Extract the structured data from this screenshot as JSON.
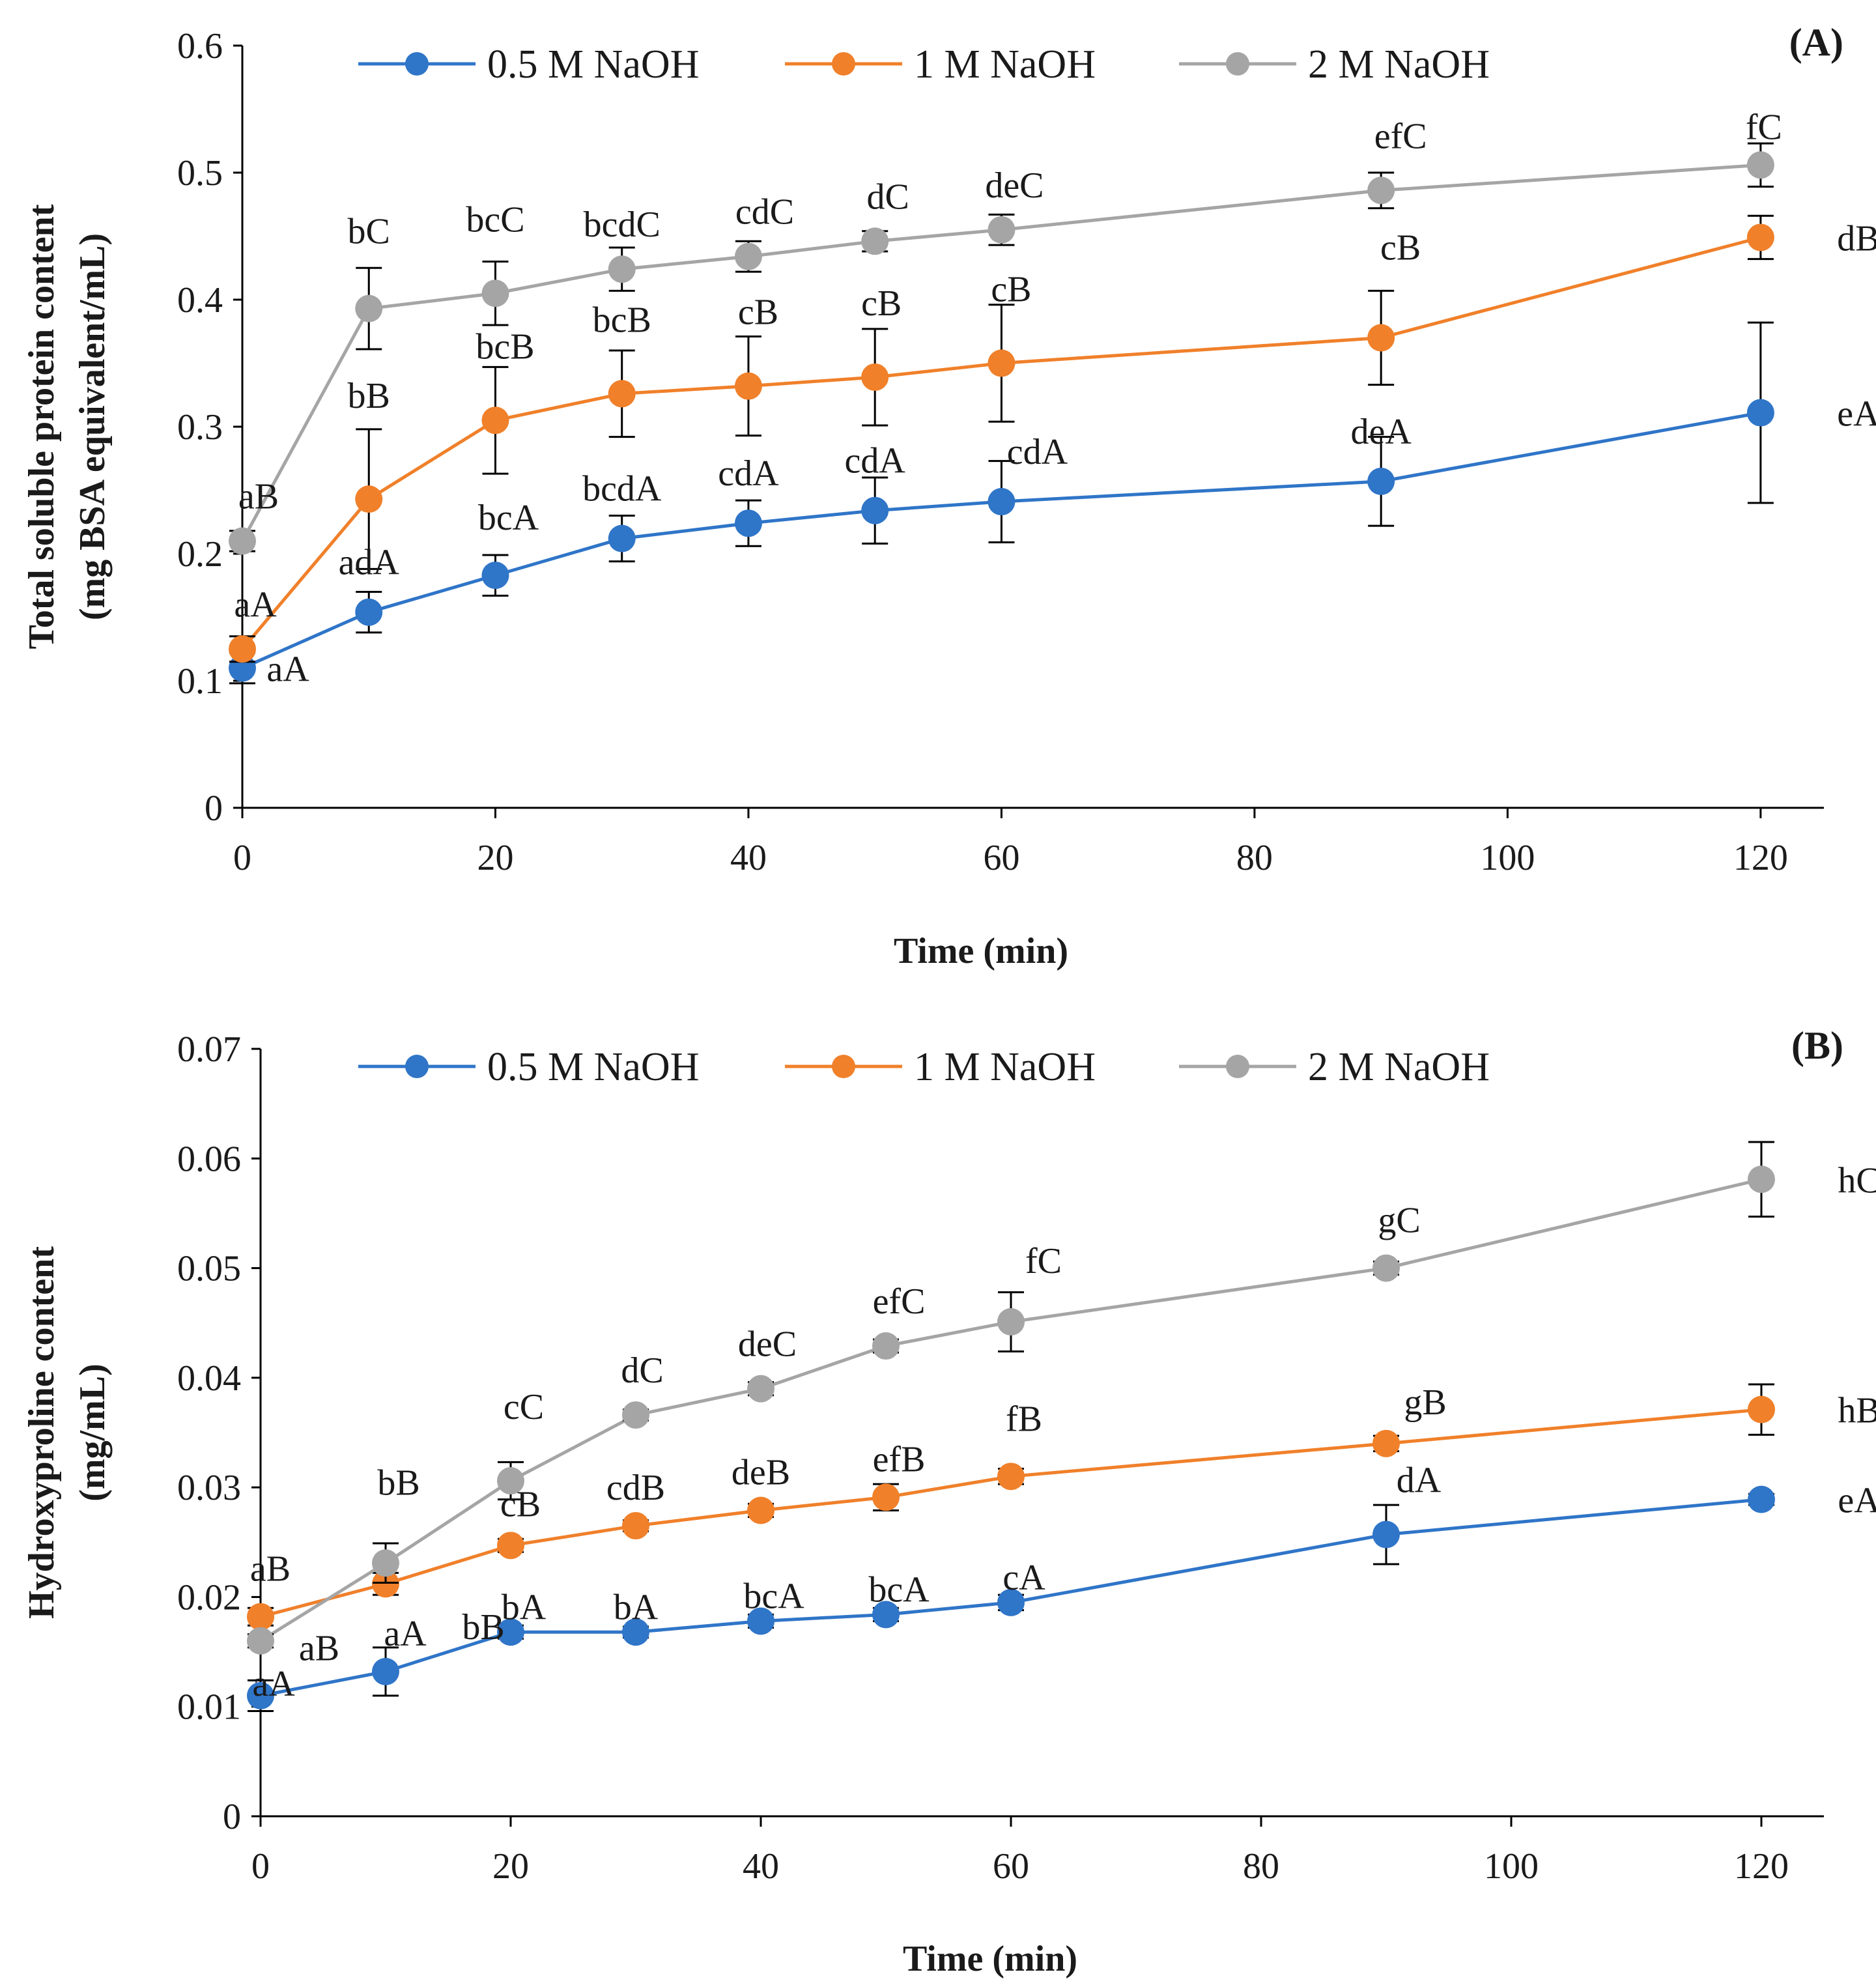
{
  "chart_data": [
    {
      "type": "line",
      "panel_label": "(A)",
      "xlabel": "Time (min)",
      "ylabel_lines": [
        "Total soluble protein content",
        "(mg BSA equivalent/mL)"
      ],
      "xlim": [
        0,
        125
      ],
      "ylim": [
        0,
        0.6
      ],
      "xticks": [
        0,
        20,
        40,
        60,
        80,
        100,
        120
      ],
      "yticks": [
        0,
        0.1,
        0.2,
        0.3,
        0.4,
        0.5,
        0.6
      ],
      "ytick_labels": [
        "0",
        "0.1",
        "0.2",
        "0.3",
        "0.4",
        "0.5",
        "0.6"
      ],
      "legend_position": "top",
      "grid": false,
      "x": [
        0,
        10,
        20,
        30,
        40,
        50,
        60,
        90,
        120
      ],
      "series": [
        {
          "name": "0.5 M NaOH",
          "color": "#2f75c8",
          "values": [
            0.11,
            0.154,
            0.183,
            0.212,
            0.224,
            0.234,
            0.241,
            0.257,
            0.311
          ],
          "errors": [
            0.012,
            0.016,
            0.016,
            0.018,
            0.018,
            0.026,
            0.032,
            0.035,
            0.071
          ],
          "labels": [
            "aA",
            "adA",
            "bcA",
            "bcdA",
            "cdA",
            "cdA",
            "cdA",
            "deA",
            "eA"
          ]
        },
        {
          "name": "1 M NaOH",
          "color": "#f0802a",
          "values": [
            0.125,
            0.243,
            0.305,
            0.326,
            0.332,
            0.339,
            0.35,
            0.37,
            0.449
          ],
          "errors": [
            0.01,
            0.055,
            0.042,
            0.034,
            0.039,
            0.038,
            0.046,
            0.037,
            0.017
          ],
          "labels": [
            "aA",
            "bB",
            "bcB",
            "bcB",
            "cB",
            "cB",
            "cB",
            "cB",
            "dB"
          ]
        },
        {
          "name": "2 M NaOH",
          "color": "#a5a5a5",
          "values": [
            0.21,
            0.393,
            0.405,
            0.424,
            0.434,
            0.446,
            0.455,
            0.486,
            0.506
          ],
          "errors": [
            0.008,
            0.032,
            0.025,
            0.017,
            0.012,
            0.008,
            0.012,
            0.014,
            0.017
          ],
          "labels": [
            "aB",
            "bC",
            "bcC",
            "bcdC",
            "cdC",
            "dC",
            "deC",
            "efC",
            "fC"
          ]
        }
      ]
    },
    {
      "type": "line",
      "panel_label": "(B)",
      "xlabel": "Time (min)",
      "ylabel_lines": [
        "Hydroxyproline content",
        "(mg/mL)"
      ],
      "xlim": [
        0,
        125
      ],
      "ylim": [
        0,
        0.07
      ],
      "xticks": [
        0,
        20,
        40,
        60,
        80,
        100,
        120
      ],
      "yticks": [
        0,
        0.01,
        0.02,
        0.03,
        0.04,
        0.05,
        0.06,
        0.07
      ],
      "ytick_labels": [
        "0",
        "0.01",
        "0.02",
        "0.03",
        "0.04",
        "0.05",
        "0.06",
        "0.07"
      ],
      "legend_position": "top",
      "grid": false,
      "x": [
        0,
        10,
        20,
        30,
        40,
        50,
        60,
        90,
        120
      ],
      "series": [
        {
          "name": "0.5 M NaOH",
          "color": "#2f75c8",
          "values": [
            0.011,
            0.0132,
            0.0168,
            0.0168,
            0.0178,
            0.0184,
            0.0195,
            0.0257,
            0.0289
          ],
          "errors": [
            0.0014,
            0.0022,
            0.0006,
            0.0005,
            0.0006,
            0.0006,
            0.0007,
            0.0027,
            0.0005
          ],
          "labels": [
            "aA",
            "aA",
            "bA",
            "bA",
            "bcA",
            "bcA",
            "cA",
            "dA",
            "eA"
          ]
        },
        {
          "name": "1 M NaOH",
          "color": "#f0802a",
          "values": [
            0.0182,
            0.0212,
            0.0247,
            0.0265,
            0.0279,
            0.0291,
            0.031,
            0.034,
            0.0371
          ],
          "errors": [
            0.0008,
            0.001,
            0.0006,
            0.0005,
            0.0006,
            0.0012,
            0.0007,
            0.0007,
            0.0023
          ],
          "labels": [
            "aB",
            "bB",
            "cB",
            "cdB",
            "deB",
            "efB",
            "fB",
            "gB",
            "hB"
          ]
        },
        {
          "name": "2 M NaOH",
          "color": "#a5a5a5",
          "values": [
            0.016,
            0.0231,
            0.0306,
            0.0366,
            0.039,
            0.0429,
            0.0451,
            0.05,
            0.0581
          ],
          "errors": [
            0.0006,
            0.0018,
            0.0017,
            0.0005,
            0.0006,
            0.0006,
            0.0027,
            0.0006,
            0.0034
          ],
          "labels": [
            "aB",
            "bB",
            "cC",
            "dC",
            "deC",
            "efC",
            "fC",
            "gC",
            "hC"
          ]
        }
      ]
    }
  ]
}
